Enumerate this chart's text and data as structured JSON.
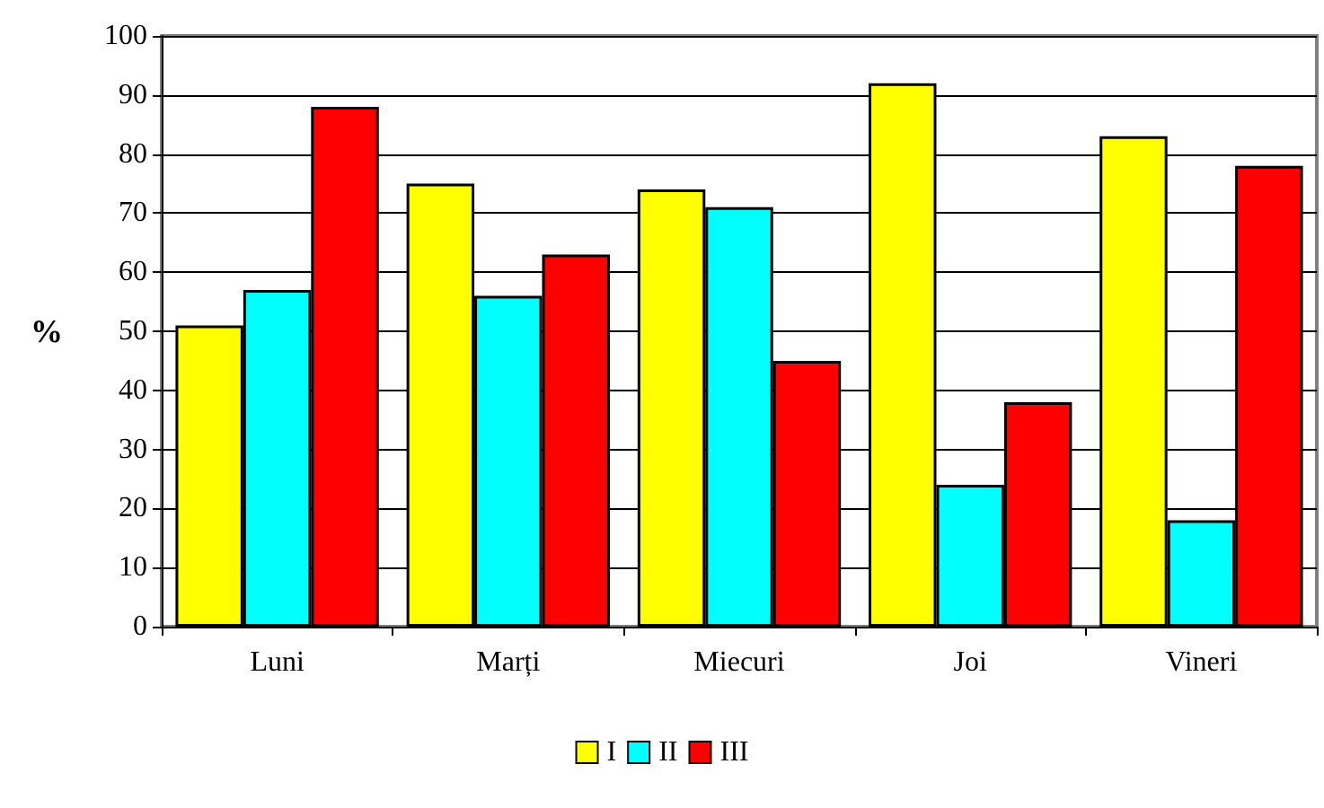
{
  "chart_data": {
    "type": "bar",
    "ylabel": "%",
    "categories": [
      "Luni",
      "Marți",
      "Miecuri",
      "Joi",
      "Vineri"
    ],
    "series": [
      {
        "name": "I",
        "color": "#ffff00",
        "values": [
          51,
          75,
          74,
          92,
          83
        ]
      },
      {
        "name": "II",
        "color": "#00ffff",
        "values": [
          57,
          56,
          71,
          24,
          18
        ]
      },
      {
        "name": "III",
        "color": "#ff0000",
        "values": [
          88,
          63,
          45,
          38,
          78
        ]
      }
    ],
    "ylim": [
      0,
      100
    ],
    "yticks": [
      0,
      10,
      20,
      30,
      40,
      50,
      60,
      70,
      80,
      90,
      100
    ],
    "grid": "y",
    "legend": "bottom"
  }
}
